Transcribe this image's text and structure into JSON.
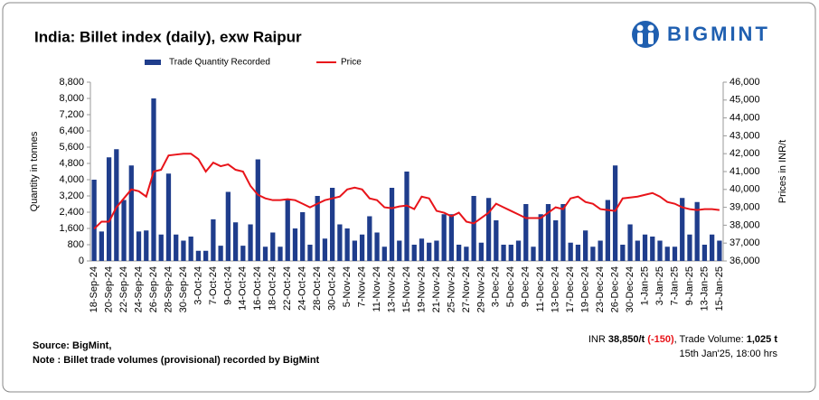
{
  "chart_data": {
    "type": "bar_line",
    "title": "India: Billet index (daily), exw Raipur",
    "y_label": "Quantity in tonnes",
    "y2_label": "Prices in INR/t",
    "categories": [
      "18-Sep-24",
      null,
      "20-Sep-24",
      null,
      "22-Sep-24",
      null,
      "24-Sep-24",
      null,
      "26-Sep-24",
      null,
      "28-Sep-24",
      null,
      "30-Sep-24",
      null,
      "3-Oct-24",
      null,
      "7-Oct-24",
      null,
      "9-Oct-24",
      null,
      "14-Oct-24",
      null,
      "16-Oct-24",
      null,
      "18-Oct-24",
      null,
      "22-Oct-24",
      null,
      "24-Oct-24",
      null,
      "28-Oct-24",
      null,
      "30-Oct-24",
      null,
      "5-Nov-24",
      null,
      "7-Nov-24",
      null,
      "11-Nov-24",
      null,
      "13-Nov-24",
      null,
      "15-Nov-24",
      null,
      "19-Nov-24",
      null,
      "21-Nov-24",
      null,
      "25-Nov-24",
      null,
      "27-Nov-24",
      null,
      "29-Nov-24",
      null,
      "3-Dec-24",
      null,
      "5-Dec-24",
      null,
      "9-Dec-24",
      null,
      "11-Dec-24",
      null,
      "13-Dec-24",
      null,
      "17-Dec-24",
      null,
      "19-Dec-24",
      null,
      "23-Dec-24",
      null,
      "26-Dec-24",
      null,
      "30-Dec-24",
      null,
      "1-Jan-25",
      null,
      "3-Jan-25",
      null,
      "7-Jan-25",
      null,
      "9-Jan-25",
      null,
      "13-Jan-25",
      null,
      "15-Jan-25"
    ],
    "series": [
      {
        "name": "Trade Quantity Recorded",
        "type": "bar",
        "color": "#1f3d8c",
        "axis": "y",
        "values": [
          4000,
          1450,
          5100,
          5500,
          3000,
          4700,
          1450,
          1500,
          8000,
          1300,
          4300,
          1300,
          1000,
          1200,
          500,
          500,
          2050,
          750,
          3400,
          1900,
          750,
          1800,
          5000,
          700,
          1400,
          700,
          3000,
          1600,
          2400,
          800,
          3200,
          1100,
          3600,
          1800,
          1600,
          1000,
          1300,
          2200,
          1400,
          700,
          3600,
          1000,
          4400,
          800,
          1100,
          900,
          1000,
          2300,
          2300,
          800,
          700,
          3200,
          900,
          3100,
          2000,
          800,
          800,
          1000,
          2800,
          700,
          2300,
          2800,
          2000,
          2800,
          900,
          800,
          1500,
          700,
          1000,
          3000,
          4700,
          800,
          1800,
          1000,
          1300,
          1200,
          1000,
          700,
          700,
          3100,
          1300,
          2900,
          800,
          1300,
          1000
        ]
      },
      {
        "name": "Price",
        "type": "line",
        "color": "#e8141a",
        "axis": "y2",
        "values": [
          37800,
          38200,
          38200,
          39000,
          39500,
          40000,
          39900,
          39600,
          41000,
          41100,
          41900,
          41950,
          42000,
          42000,
          41700,
          41000,
          41500,
          41300,
          41400,
          41100,
          41000,
          40200,
          39700,
          39500,
          39400,
          39400,
          39450,
          39400,
          39200,
          39000,
          39200,
          39400,
          39500,
          39600,
          40000,
          40100,
          40000,
          39500,
          39400,
          39000,
          38950,
          39050,
          39100,
          38900,
          39600,
          39500,
          38800,
          38700,
          38500,
          38700,
          38200,
          38100,
          38400,
          38700,
          39200,
          39000,
          38800,
          38600,
          38400,
          38400,
          38400,
          38700,
          39000,
          38900,
          39500,
          39600,
          39300,
          39200,
          38900,
          38850,
          38800,
          39500,
          39550,
          39600,
          39700,
          39800,
          39600,
          39300,
          39200,
          39000,
          38900,
          38850,
          38900,
          38900,
          38850
        ]
      }
    ],
    "ylim": [
      0,
      8800
    ],
    "yticks": [
      0,
      800,
      {
        "value": 1600,
        "label": "1,600"
      },
      {
        "value": 2400,
        "label": "2,400"
      },
      {
        "value": 3200,
        "label": "3,200"
      },
      {
        "value": 4000,
        "label": "4,000"
      },
      {
        "value": 4800,
        "label": "4,800"
      },
      {
        "value": 5600,
        "label": "5,600"
      },
      {
        "value": 6400,
        "label": "6,400"
      },
      {
        "value": 7200,
        "label": "7,200"
      },
      {
        "value": 8000,
        "label": "8,000"
      },
      {
        "value": 8800,
        "label": "8,800"
      }
    ],
    "y2lim": [
      36000,
      46000
    ],
    "y2ticks": [
      {
        "value": 36000,
        "label": "36,000"
      },
      {
        "value": 37000,
        "label": "37,000"
      },
      {
        "value": 38000,
        "label": "38,000"
      },
      {
        "value": 39000,
        "label": "39,000"
      },
      {
        "value": 40000,
        "label": "40,000"
      },
      {
        "value": 41000,
        "label": "41,000"
      },
      {
        "value": 42000,
        "label": "42,000"
      },
      {
        "value": 43000,
        "label": "43,000"
      },
      {
        "value": 44000,
        "label": "44,000"
      },
      {
        "value": 45000,
        "label": "45,000"
      },
      {
        "value": 46000,
        "label": "46,000"
      }
    ],
    "legend": "top",
    "grid": false
  },
  "logo": "BIGMINT",
  "source": "Source: BigMint,",
  "note": "Note : Billet trade volumes (provisional) recorded by BigMint",
  "summary": {
    "prefix": "INR",
    "price": "38,850/t",
    "change": "(-150)",
    "volume_label": ", Trade Volume:",
    "volume": "1,025 t"
  },
  "timestamp": "15th Jan'25, 18:00 hrs"
}
